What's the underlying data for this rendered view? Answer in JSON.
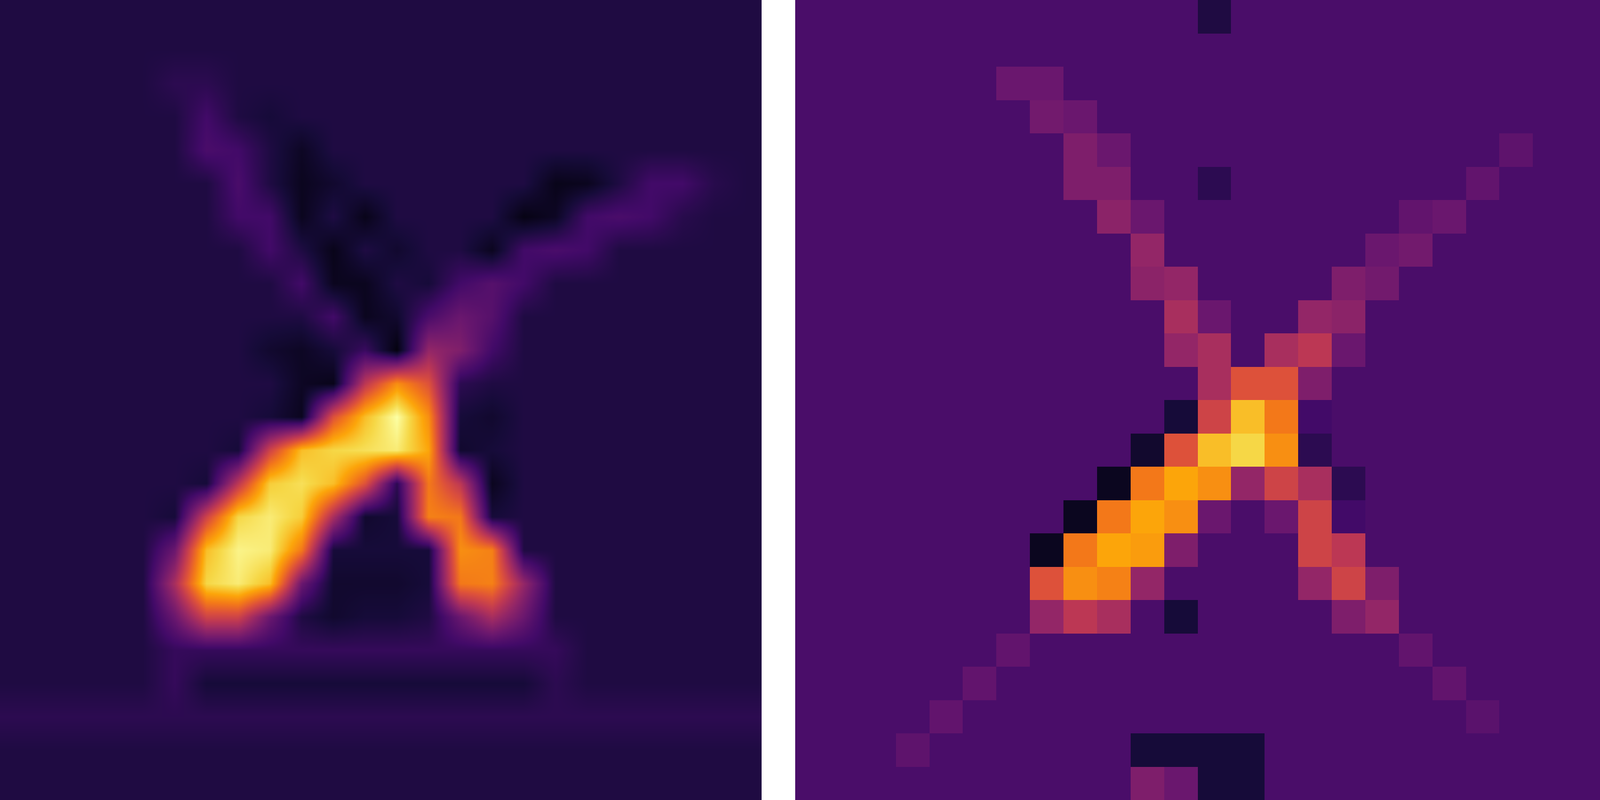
{
  "chart_data": [
    {
      "type": "heatmap",
      "color": "inferno",
      "tick_labels": false,
      "zlim": [
        0,
        1
      ],
      "cells": [
        [
          0.12,
          0.12,
          0.12,
          0.12,
          0.12,
          0.12,
          0.12,
          0.12,
          0.12,
          0.12,
          0.12,
          0.12,
          0.12,
          0.12,
          0.12,
          0.12,
          0.12,
          0.12,
          0.12,
          0.12,
          0.12,
          0.12,
          0.12,
          0.12
        ],
        [
          0.12,
          0.12,
          0.12,
          0.12,
          0.12,
          0.12,
          0.12,
          0.12,
          0.12,
          0.12,
          0.12,
          0.12,
          0.12,
          0.12,
          0.12,
          0.12,
          0.12,
          0.12,
          0.12,
          0.12,
          0.12,
          0.12,
          0.12,
          0.12
        ],
        [
          0.12,
          0.12,
          0.12,
          0.12,
          0.12,
          0.15,
          0.15,
          0.12,
          0.12,
          0.12,
          0.12,
          0.12,
          0.12,
          0.12,
          0.12,
          0.12,
          0.12,
          0.12,
          0.12,
          0.12,
          0.12,
          0.12,
          0.12,
          0.12
        ],
        [
          0.12,
          0.12,
          0.12,
          0.12,
          0.12,
          0.12,
          0.2,
          0.12,
          0.1,
          0.12,
          0.12,
          0.12,
          0.12,
          0.12,
          0.12,
          0.12,
          0.12,
          0.12,
          0.12,
          0.12,
          0.12,
          0.12,
          0.12,
          0.12
        ],
        [
          0.12,
          0.12,
          0.12,
          0.12,
          0.12,
          0.12,
          0.22,
          0.2,
          0.12,
          0.06,
          0.12,
          0.12,
          0.12,
          0.12,
          0.12,
          0.12,
          0.12,
          0.12,
          0.12,
          0.12,
          0.12,
          0.12,
          0.12,
          0.12
        ],
        [
          0.12,
          0.12,
          0.12,
          0.12,
          0.12,
          0.12,
          0.12,
          0.22,
          0.12,
          0.05,
          0.08,
          0.12,
          0.12,
          0.12,
          0.12,
          0.12,
          0.12,
          0.04,
          0.05,
          0.12,
          0.2,
          0.2,
          0.14,
          0.12
        ],
        [
          0.12,
          0.12,
          0.12,
          0.12,
          0.12,
          0.12,
          0.12,
          0.2,
          0.2,
          0.05,
          0.12,
          0.04,
          0.12,
          0.12,
          0.12,
          0.12,
          0.03,
          0.06,
          0.2,
          0.22,
          0.2,
          0.14,
          0.12,
          0.12
        ],
        [
          0.12,
          0.12,
          0.12,
          0.12,
          0.12,
          0.12,
          0.12,
          0.12,
          0.2,
          0.12,
          0.04,
          0.12,
          0.08,
          0.12,
          0.12,
          0.05,
          0.2,
          0.22,
          0.2,
          0.12,
          0.12,
          0.12,
          0.12,
          0.12
        ],
        [
          0.12,
          0.12,
          0.12,
          0.12,
          0.12,
          0.12,
          0.12,
          0.12,
          0.12,
          0.2,
          0.05,
          0.05,
          0.12,
          0.1,
          0.2,
          0.25,
          0.2,
          0.12,
          0.12,
          0.12,
          0.12,
          0.12,
          0.12,
          0.12
        ],
        [
          0.12,
          0.12,
          0.12,
          0.12,
          0.12,
          0.12,
          0.12,
          0.12,
          0.12,
          0.12,
          0.2,
          0.05,
          0.08,
          0.22,
          0.3,
          0.25,
          0.12,
          0.12,
          0.12,
          0.12,
          0.12,
          0.12,
          0.12,
          0.12
        ],
        [
          0.12,
          0.12,
          0.12,
          0.12,
          0.12,
          0.12,
          0.12,
          0.12,
          0.08,
          0.06,
          0.1,
          0.18,
          0.02,
          0.4,
          0.35,
          0.2,
          0.12,
          0.12,
          0.12,
          0.12,
          0.12,
          0.12,
          0.12,
          0.12
        ],
        [
          0.12,
          0.12,
          0.12,
          0.12,
          0.12,
          0.12,
          0.12,
          0.12,
          0.12,
          0.06,
          0.04,
          0.5,
          0.75,
          0.6,
          0.15,
          0.12,
          0.12,
          0.12,
          0.12,
          0.12,
          0.12,
          0.12,
          0.12,
          0.12
        ],
        [
          0.12,
          0.12,
          0.12,
          0.12,
          0.12,
          0.12,
          0.12,
          0.12,
          0.1,
          0.05,
          0.6,
          0.85,
          1.0,
          0.75,
          0.1,
          0.08,
          0.12,
          0.12,
          0.12,
          0.12,
          0.12,
          0.12,
          0.12,
          0.12
        ],
        [
          0.12,
          0.12,
          0.12,
          0.12,
          0.12,
          0.12,
          0.12,
          0.1,
          0.55,
          0.85,
          0.9,
          0.92,
          0.95,
          0.8,
          0.08,
          0.1,
          0.12,
          0.12,
          0.12,
          0.12,
          0.12,
          0.12,
          0.12,
          0.12
        ],
        [
          0.12,
          0.12,
          0.12,
          0.12,
          0.12,
          0.12,
          0.1,
          0.5,
          0.88,
          0.92,
          0.85,
          0.6,
          0.15,
          0.7,
          0.5,
          0.05,
          0.12,
          0.12,
          0.12,
          0.12,
          0.12,
          0.12,
          0.12,
          0.12
        ],
        [
          0.12,
          0.12,
          0.12,
          0.12,
          0.12,
          0.1,
          0.55,
          0.9,
          0.95,
          0.88,
          0.45,
          0.08,
          0.1,
          0.72,
          0.7,
          0.1,
          0.12,
          0.12,
          0.12,
          0.12,
          0.12,
          0.12,
          0.12,
          0.12
        ],
        [
          0.12,
          0.12,
          0.12,
          0.12,
          0.12,
          0.3,
          0.85,
          0.97,
          0.95,
          0.7,
          0.1,
          0.1,
          0.1,
          0.1,
          0.75,
          0.72,
          0.12,
          0.12,
          0.12,
          0.12,
          0.12,
          0.12,
          0.12,
          0.12
        ],
        [
          0.12,
          0.12,
          0.12,
          0.12,
          0.12,
          0.45,
          0.9,
          0.95,
          0.85,
          0.3,
          0.08,
          0.08,
          0.08,
          0.1,
          0.7,
          0.72,
          0.4,
          0.12,
          0.12,
          0.12,
          0.12,
          0.12,
          0.12,
          0.12
        ],
        [
          0.12,
          0.12,
          0.12,
          0.12,
          0.12,
          0.3,
          0.55,
          0.55,
          0.3,
          0.12,
          0.08,
          0.1,
          0.1,
          0.12,
          0.3,
          0.45,
          0.3,
          0.12,
          0.12,
          0.12,
          0.12,
          0.12,
          0.12,
          0.12
        ],
        [
          0.12,
          0.12,
          0.12,
          0.12,
          0.12,
          0.17,
          0.17,
          0.17,
          0.17,
          0.17,
          0.17,
          0.17,
          0.17,
          0.17,
          0.17,
          0.17,
          0.17,
          0.17,
          0.12,
          0.12,
          0.12,
          0.12,
          0.12,
          0.12
        ],
        [
          0.12,
          0.12,
          0.12,
          0.12,
          0.12,
          0.17,
          0.1,
          0.1,
          0.1,
          0.1,
          0.1,
          0.1,
          0.1,
          0.1,
          0.1,
          0.1,
          0.1,
          0.15,
          0.12,
          0.12,
          0.12,
          0.12,
          0.12,
          0.12
        ],
        [
          0.15,
          0.15,
          0.15,
          0.15,
          0.15,
          0.15,
          0.15,
          0.15,
          0.15,
          0.15,
          0.15,
          0.15,
          0.15,
          0.15,
          0.15,
          0.15,
          0.15,
          0.15,
          0.15,
          0.15,
          0.15,
          0.15,
          0.15,
          0.15
        ],
        [
          0.12,
          0.12,
          0.12,
          0.12,
          0.12,
          0.12,
          0.12,
          0.12,
          0.12,
          0.12,
          0.12,
          0.12,
          0.12,
          0.12,
          0.12,
          0.12,
          0.12,
          0.12,
          0.12,
          0.12,
          0.12,
          0.12,
          0.12,
          0.12
        ],
        [
          0.12,
          0.12,
          0.12,
          0.12,
          0.12,
          0.12,
          0.12,
          0.12,
          0.12,
          0.12,
          0.12,
          0.12,
          0.12,
          0.12,
          0.12,
          0.12,
          0.12,
          0.12,
          0.12,
          0.12,
          0.12,
          0.12,
          0.12,
          0.12
        ]
      ]
    },
    {
      "type": "heatmap",
      "color": "inferno",
      "tick_labels": false,
      "zlim": [
        0,
        1
      ],
      "cells": [
        [
          0.22,
          0.22,
          0.22,
          0.22,
          0.22,
          0.22,
          0.22,
          0.22,
          0.22,
          0.22,
          0.22,
          0.22,
          0.12,
          0.22,
          0.22,
          0.22,
          0.22,
          0.22,
          0.22,
          0.22,
          0.22,
          0.22,
          0.22,
          0.22
        ],
        [
          0.22,
          0.22,
          0.22,
          0.22,
          0.22,
          0.22,
          0.22,
          0.22,
          0.22,
          0.22,
          0.22,
          0.22,
          0.22,
          0.22,
          0.22,
          0.22,
          0.22,
          0.22,
          0.22,
          0.22,
          0.22,
          0.22,
          0.22,
          0.22
        ],
        [
          0.22,
          0.22,
          0.22,
          0.22,
          0.22,
          0.22,
          0.3,
          0.3,
          0.22,
          0.22,
          0.22,
          0.22,
          0.22,
          0.22,
          0.22,
          0.22,
          0.22,
          0.22,
          0.22,
          0.22,
          0.22,
          0.22,
          0.22,
          0.22
        ],
        [
          0.22,
          0.22,
          0.22,
          0.22,
          0.22,
          0.22,
          0.22,
          0.32,
          0.3,
          0.22,
          0.22,
          0.22,
          0.22,
          0.22,
          0.22,
          0.22,
          0.22,
          0.22,
          0.22,
          0.22,
          0.22,
          0.22,
          0.22,
          0.22
        ],
        [
          0.22,
          0.22,
          0.22,
          0.22,
          0.22,
          0.22,
          0.22,
          0.22,
          0.35,
          0.3,
          0.22,
          0.22,
          0.22,
          0.22,
          0.22,
          0.22,
          0.22,
          0.22,
          0.22,
          0.22,
          0.22,
          0.27,
          0.22,
          0.22
        ],
        [
          0.22,
          0.22,
          0.22,
          0.22,
          0.22,
          0.22,
          0.22,
          0.22,
          0.35,
          0.35,
          0.22,
          0.22,
          0.15,
          0.22,
          0.22,
          0.22,
          0.22,
          0.22,
          0.22,
          0.22,
          0.28,
          0.22,
          0.22,
          0.22
        ],
        [
          0.22,
          0.22,
          0.22,
          0.22,
          0.22,
          0.22,
          0.22,
          0.22,
          0.22,
          0.38,
          0.3,
          0.22,
          0.22,
          0.22,
          0.22,
          0.22,
          0.22,
          0.22,
          0.28,
          0.3,
          0.22,
          0.22,
          0.22,
          0.22
        ],
        [
          0.22,
          0.22,
          0.22,
          0.22,
          0.22,
          0.22,
          0.22,
          0.22,
          0.22,
          0.22,
          0.4,
          0.22,
          0.22,
          0.22,
          0.22,
          0.22,
          0.22,
          0.3,
          0.32,
          0.22,
          0.22,
          0.22,
          0.22,
          0.22
        ],
        [
          0.22,
          0.22,
          0.22,
          0.22,
          0.22,
          0.22,
          0.22,
          0.22,
          0.22,
          0.22,
          0.38,
          0.4,
          0.22,
          0.22,
          0.22,
          0.22,
          0.35,
          0.32,
          0.22,
          0.22,
          0.22,
          0.22,
          0.22,
          0.22
        ],
        [
          0.22,
          0.22,
          0.22,
          0.22,
          0.22,
          0.22,
          0.22,
          0.22,
          0.22,
          0.22,
          0.22,
          0.45,
          0.3,
          0.22,
          0.22,
          0.4,
          0.38,
          0.22,
          0.22,
          0.22,
          0.22,
          0.22,
          0.22,
          0.22
        ],
        [
          0.22,
          0.22,
          0.22,
          0.22,
          0.22,
          0.22,
          0.22,
          0.22,
          0.22,
          0.22,
          0.22,
          0.4,
          0.45,
          0.22,
          0.45,
          0.5,
          0.3,
          0.22,
          0.22,
          0.22,
          0.22,
          0.22,
          0.22,
          0.22
        ],
        [
          0.22,
          0.22,
          0.22,
          0.22,
          0.22,
          0.22,
          0.22,
          0.22,
          0.22,
          0.22,
          0.22,
          0.22,
          0.45,
          0.6,
          0.6,
          0.35,
          0.22,
          0.22,
          0.22,
          0.22,
          0.22,
          0.22,
          0.22,
          0.22
        ],
        [
          0.22,
          0.22,
          0.22,
          0.22,
          0.22,
          0.22,
          0.22,
          0.22,
          0.22,
          0.22,
          0.22,
          0.1,
          0.55,
          0.85,
          0.7,
          0.2,
          0.22,
          0.22,
          0.22,
          0.22,
          0.22,
          0.22,
          0.22,
          0.22
        ],
        [
          0.22,
          0.22,
          0.22,
          0.22,
          0.22,
          0.22,
          0.22,
          0.22,
          0.22,
          0.22,
          0.08,
          0.6,
          0.85,
          0.9,
          0.75,
          0.15,
          0.22,
          0.22,
          0.22,
          0.22,
          0.22,
          0.22,
          0.22,
          0.22
        ],
        [
          0.22,
          0.22,
          0.22,
          0.22,
          0.22,
          0.22,
          0.22,
          0.22,
          0.22,
          0.05,
          0.7,
          0.8,
          0.75,
          0.4,
          0.55,
          0.45,
          0.15,
          0.22,
          0.22,
          0.22,
          0.22,
          0.22,
          0.22,
          0.22
        ],
        [
          0.22,
          0.22,
          0.22,
          0.22,
          0.22,
          0.22,
          0.22,
          0.22,
          0.05,
          0.7,
          0.8,
          0.75,
          0.3,
          0.22,
          0.3,
          0.55,
          0.2,
          0.22,
          0.22,
          0.22,
          0.22,
          0.22,
          0.22,
          0.22
        ],
        [
          0.22,
          0.22,
          0.22,
          0.22,
          0.22,
          0.22,
          0.22,
          0.05,
          0.7,
          0.8,
          0.78,
          0.35,
          0.22,
          0.22,
          0.22,
          0.55,
          0.5,
          0.22,
          0.22,
          0.22,
          0.22,
          0.22,
          0.22,
          0.22
        ],
        [
          0.22,
          0.22,
          0.22,
          0.22,
          0.22,
          0.22,
          0.22,
          0.6,
          0.75,
          0.72,
          0.4,
          0.22,
          0.22,
          0.22,
          0.22,
          0.4,
          0.55,
          0.35,
          0.22,
          0.22,
          0.22,
          0.22,
          0.22,
          0.22
        ],
        [
          0.22,
          0.22,
          0.22,
          0.22,
          0.22,
          0.22,
          0.22,
          0.4,
          0.5,
          0.45,
          0.22,
          0.1,
          0.22,
          0.22,
          0.22,
          0.22,
          0.35,
          0.4,
          0.22,
          0.22,
          0.22,
          0.22,
          0.22,
          0.22
        ],
        [
          0.22,
          0.22,
          0.22,
          0.22,
          0.22,
          0.22,
          0.28,
          0.22,
          0.22,
          0.22,
          0.22,
          0.22,
          0.22,
          0.22,
          0.22,
          0.22,
          0.22,
          0.22,
          0.28,
          0.22,
          0.22,
          0.22,
          0.22,
          0.22
        ],
        [
          0.22,
          0.22,
          0.22,
          0.22,
          0.22,
          0.28,
          0.22,
          0.22,
          0.22,
          0.22,
          0.22,
          0.22,
          0.22,
          0.22,
          0.22,
          0.22,
          0.22,
          0.22,
          0.22,
          0.28,
          0.22,
          0.22,
          0.22,
          0.22
        ],
        [
          0.22,
          0.22,
          0.22,
          0.22,
          0.28,
          0.22,
          0.22,
          0.22,
          0.22,
          0.22,
          0.22,
          0.22,
          0.22,
          0.22,
          0.22,
          0.22,
          0.22,
          0.22,
          0.22,
          0.22,
          0.26,
          0.22,
          0.22,
          0.22
        ],
        [
          0.22,
          0.22,
          0.22,
          0.27,
          0.22,
          0.22,
          0.22,
          0.22,
          0.22,
          0.22,
          0.1,
          0.1,
          0.1,
          0.1,
          0.22,
          0.22,
          0.22,
          0.22,
          0.22,
          0.22,
          0.22,
          0.22,
          0.22,
          0.22
        ],
        [
          0.22,
          0.22,
          0.22,
          0.22,
          0.22,
          0.22,
          0.22,
          0.22,
          0.22,
          0.22,
          0.35,
          0.3,
          0.1,
          0.1,
          0.22,
          0.22,
          0.22,
          0.22,
          0.22,
          0.22,
          0.22,
          0.22,
          0.22,
          0.22
        ]
      ]
    }
  ]
}
